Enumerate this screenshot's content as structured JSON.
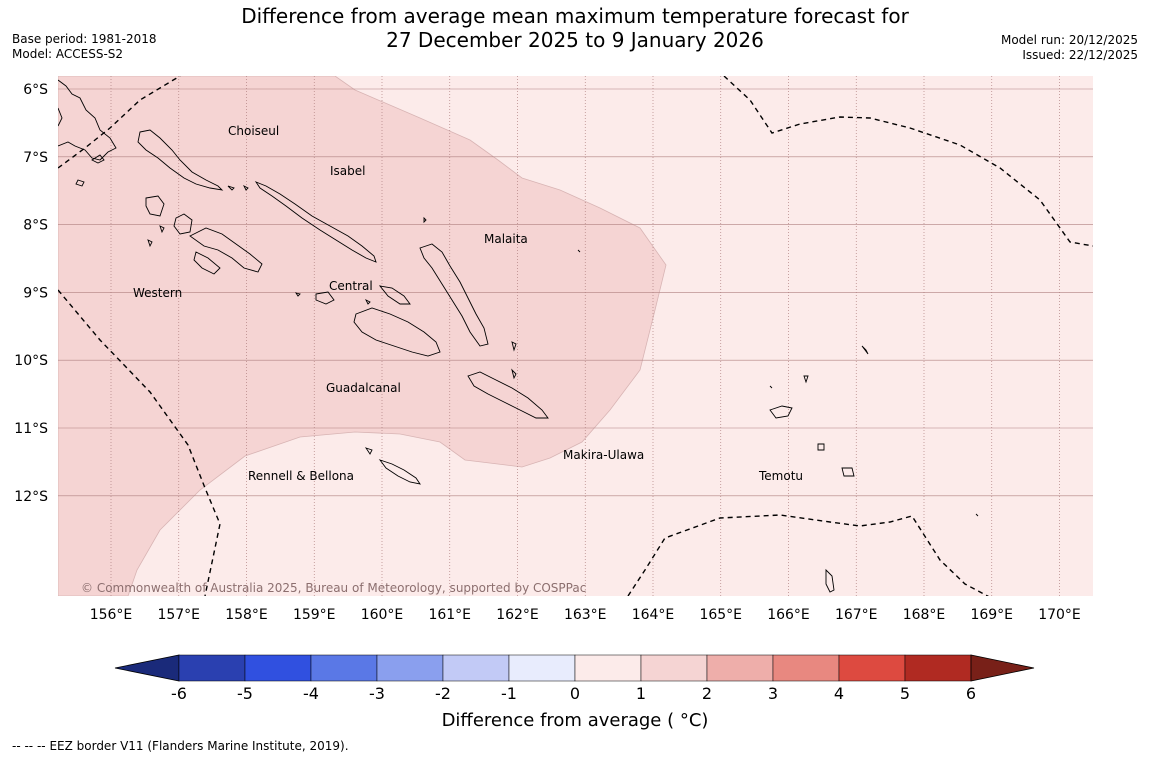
{
  "header": {
    "title_line1": "Difference from average mean maximum temperature forecast for",
    "title_line2": "27 December 2025 to 9 January 2026",
    "base_period": "Base period: 1981-2018",
    "model": "Model: ACCESS-S2",
    "model_run": "Model run: 20/12/2025",
    "issued": "Issued: 22/12/2025"
  },
  "map": {
    "lat_labels": [
      "6°S",
      "7°S",
      "8°S",
      "9°S",
      "10°S",
      "11°S",
      "12°S"
    ],
    "lon_labels": [
      "156°E",
      "157°E",
      "158°E",
      "159°E",
      "160°E",
      "161°E",
      "162°E",
      "163°E",
      "164°E",
      "165°E",
      "166°E",
      "167°E",
      "168°E",
      "169°E",
      "170°E"
    ],
    "provinces": [
      "Choiseul",
      "Isabel",
      "Malaita",
      "Western",
      "Central",
      "Guadalcanal",
      "Makira-Ulawa",
      "Rennell & Bellona",
      "Temotu"
    ],
    "copyright": "© Commonwealth of Australia 2025, Bureau of Meteorology, supported by COSPPac",
    "colors": {
      "anomaly_0_1": "#fcebea",
      "anomaly_1_2": "#f5d4d3",
      "grid": "#b08080",
      "coast": "#000000",
      "eez": "#000000"
    }
  },
  "colorbar": {
    "ticks": [
      "-6",
      "-5",
      "-4",
      "-3",
      "-2",
      "-1",
      "0",
      "1",
      "2",
      "3",
      "4",
      "5",
      "6"
    ],
    "colors": [
      "#1a2a7a",
      "#2a40b0",
      "#3050e0",
      "#5a78e6",
      "#8a9fee",
      "#c2caf6",
      "#e8ecfd",
      "#fcebea",
      "#f5d4d3",
      "#eeaeaa",
      "#e88880",
      "#dd4a40",
      "#b02a22",
      "#782018"
    ],
    "label": "Difference from average ( °C)"
  },
  "footnote": {
    "dash": "-- -- --",
    "text": "EEZ border V11 (Flanders Marine Institute, 2019)."
  }
}
